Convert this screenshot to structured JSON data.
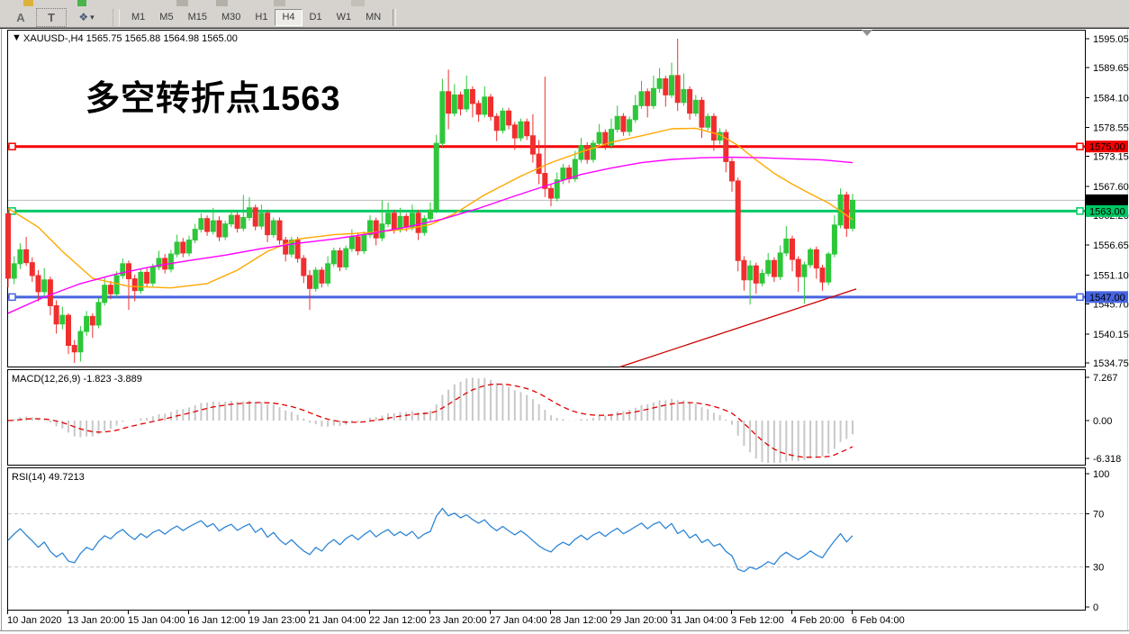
{
  "toolbar": {
    "tool_buttons": [
      {
        "name": "arrow-tool",
        "label": "A"
      },
      {
        "name": "text-tool",
        "label": "T",
        "active": true
      }
    ],
    "arrows_glyph": "❖",
    "caret_glyph": "▾",
    "timeframes": [
      "M1",
      "M5",
      "M15",
      "M30",
      "H1",
      "H4",
      "D1",
      "W1",
      "MN"
    ],
    "active_timeframe": "H4"
  },
  "window": {
    "title_marker": "▼",
    "title": "XAUUSD-,H4  1565.75 1565.88 1564.98 1565.00",
    "macd_label": "MACD(12,26,9) -1.823 -3.889",
    "rsi_label": "RSI(14) 49.7213",
    "annotation": {
      "text": "多空转折点1563",
      "color": "#fa241e"
    }
  },
  "chart_data": {
    "type": "candlestick",
    "symbol": "XAUUSD",
    "period": "H4",
    "ohlc_last": {
      "open": 1565.75,
      "high": 1565.88,
      "low": 1564.98,
      "close": 1565.0
    },
    "price_range": [
      1534.75,
      1595.05
    ],
    "price_ticks": [
      "1595.05",
      "1589.65",
      "1584.10",
      "1578.55",
      "1573.15",
      "1567.60",
      "1562.20",
      "1556.65",
      "1551.10",
      "1545.70",
      "1540.15",
      "1534.75"
    ],
    "time_ticks": [
      "10 Jan 2020",
      "13 Jan 20:00",
      "15 Jan 04:00",
      "16 Jan 12:00",
      "19 Jan 23:00",
      "21 Jan 04:00",
      "22 Jan 12:00",
      "23 Jan 20:00",
      "27 Jan 04:00",
      "28 Jan 12:00",
      "29 Jan 20:00",
      "31 Jan 04:00",
      "3 Feb 12:00",
      "4 Feb 20:00",
      "6 Feb 04:00"
    ],
    "macd_ticks": [
      "7.267",
      "0.00",
      "-6.318"
    ],
    "rsi_ticks": [
      "100",
      "70",
      "30",
      "0"
    ],
    "bull_color": "#2dc73a",
    "bear_color": "#f02e2e",
    "candles": [
      [
        1562.5,
        1563.2,
        1548.8,
        1550.5
      ],
      [
        1550.5,
        1554.6,
        1549.4,
        1553.2
      ],
      [
        1553.2,
        1557,
        1552.2,
        1555.8
      ],
      [
        1555.8,
        1558.2,
        1552.8,
        1553.4
      ],
      [
        1553.4,
        1554.4,
        1549.8,
        1551
      ],
      [
        1551,
        1552,
        1546.2,
        1548
      ],
      [
        1548,
        1552.4,
        1547.2,
        1550.2
      ],
      [
        1550.2,
        1550.8,
        1543.6,
        1545.4
      ],
      [
        1545.4,
        1546.4,
        1540.2,
        1542
      ],
      [
        1542,
        1545.2,
        1541,
        1543.6
      ],
      [
        1543.6,
        1544,
        1536.4,
        1538
      ],
      [
        1538,
        1539,
        1534.75,
        1536.8
      ],
      [
        1536.8,
        1541.6,
        1535,
        1540.6
      ],
      [
        1540.6,
        1544.4,
        1539.8,
        1543.4
      ],
      [
        1543.4,
        1544,
        1539.4,
        1541.8
      ],
      [
        1541.8,
        1546.8,
        1541.2,
        1546
      ],
      [
        1546,
        1550.6,
        1545.4,
        1549.2
      ],
      [
        1549.2,
        1550,
        1546.6,
        1547.6
      ],
      [
        1547.6,
        1551.8,
        1547,
        1551
      ],
      [
        1551,
        1554.2,
        1550.4,
        1553.2
      ],
      [
        1553.2,
        1553.8,
        1544.6,
        1550.4
      ],
      [
        1550.4,
        1551.2,
        1546.2,
        1548.2
      ],
      [
        1548.2,
        1552.2,
        1547.6,
        1551.6
      ],
      [
        1551.6,
        1552.4,
        1548.8,
        1549.6
      ],
      [
        1549.6,
        1553.2,
        1549,
        1552.6
      ],
      [
        1552.6,
        1555.6,
        1552,
        1554.2
      ],
      [
        1554.2,
        1555,
        1551.4,
        1552.2
      ],
      [
        1552.2,
        1555.8,
        1551.6,
        1555
      ],
      [
        1555,
        1558.6,
        1554.4,
        1557.2
      ],
      [
        1557.2,
        1558,
        1554.4,
        1555.2
      ],
      [
        1555.2,
        1558.4,
        1554.6,
        1557.6
      ],
      [
        1557.6,
        1560.6,
        1557,
        1559.6
      ],
      [
        1559.6,
        1562.6,
        1559,
        1561.6
      ],
      [
        1561.6,
        1562.2,
        1558.4,
        1559.2
      ],
      [
        1559.2,
        1563.6,
        1558.6,
        1561.2
      ],
      [
        1561.2,
        1562,
        1557.4,
        1558.2
      ],
      [
        1558.2,
        1561.2,
        1557.6,
        1560.6
      ],
      [
        1560.6,
        1563.2,
        1560,
        1562.2
      ],
      [
        1562.2,
        1562.8,
        1559,
        1559.8
      ],
      [
        1559.8,
        1566,
        1559.2,
        1561.8
      ],
      [
        1561.8,
        1565.6,
        1561.2,
        1563.6
      ],
      [
        1563.6,
        1564.2,
        1559.4,
        1560.2
      ],
      [
        1560.2,
        1564.2,
        1559.6,
        1562.6
      ],
      [
        1562.6,
        1563.2,
        1557.2,
        1558.6
      ],
      [
        1558.6,
        1561.8,
        1558,
        1561.2
      ],
      [
        1561.2,
        1561.8,
        1556.8,
        1557.6
      ],
      [
        1557.6,
        1558.2,
        1553.6,
        1555
      ],
      [
        1555,
        1558.2,
        1554.4,
        1557.6
      ],
      [
        1557.6,
        1558.2,
        1553.4,
        1554.2
      ],
      [
        1554.2,
        1554.8,
        1549.6,
        1551
      ],
      [
        1551,
        1552,
        1544.6,
        1548.6
      ],
      [
        1548.6,
        1552.6,
        1548,
        1552
      ],
      [
        1552,
        1552.6,
        1548.8,
        1549.6
      ],
      [
        1549.6,
        1554.6,
        1549,
        1553.2
      ],
      [
        1553.2,
        1556.2,
        1552.6,
        1555.6
      ],
      [
        1555.6,
        1556.2,
        1551.8,
        1552.6
      ],
      [
        1552.6,
        1556.6,
        1552,
        1556
      ],
      [
        1556,
        1559.6,
        1555.4,
        1558.2
      ],
      [
        1558.2,
        1558.8,
        1554.8,
        1555.6
      ],
      [
        1555.6,
        1559.2,
        1555,
        1558.6
      ],
      [
        1558.6,
        1562.2,
        1558,
        1561.2
      ],
      [
        1561.2,
        1561.8,
        1556.6,
        1558
      ],
      [
        1558,
        1565,
        1557.4,
        1560.6
      ],
      [
        1560.6,
        1564.6,
        1560,
        1562.6
      ],
      [
        1562.6,
        1563.2,
        1558.8,
        1559.6
      ],
      [
        1559.6,
        1563.6,
        1559,
        1562
      ],
      [
        1562,
        1562.6,
        1559.2,
        1560
      ],
      [
        1560,
        1564.2,
        1559.4,
        1562.6
      ],
      [
        1562.6,
        1563.2,
        1557.6,
        1559
      ],
      [
        1559,
        1562.2,
        1558.4,
        1561.6
      ],
      [
        1561.6,
        1564.6,
        1561,
        1563.2
      ],
      [
        1563.2,
        1577.2,
        1562.6,
        1575.6
      ],
      [
        1575.6,
        1587.6,
        1575,
        1585.2
      ],
      [
        1585.2,
        1589.3,
        1578.2,
        1581.2
      ],
      [
        1581.2,
        1586.6,
        1580.6,
        1584.6
      ],
      [
        1584.6,
        1585.2,
        1580.8,
        1582
      ],
      [
        1582,
        1588.2,
        1581.4,
        1585.6
      ],
      [
        1585.6,
        1586.2,
        1580.4,
        1583
      ],
      [
        1583,
        1583.6,
        1579.6,
        1581
      ],
      [
        1581,
        1586.2,
        1580.4,
        1584.2
      ],
      [
        1584.2,
        1584.8,
        1579.8,
        1580.6
      ],
      [
        1580.6,
        1581.2,
        1576,
        1578
      ],
      [
        1578,
        1582.2,
        1577.4,
        1581.6
      ],
      [
        1581.6,
        1582.2,
        1578.2,
        1579
      ],
      [
        1579,
        1579.6,
        1574.4,
        1576.6
      ],
      [
        1576.6,
        1580.2,
        1576,
        1579.6
      ],
      [
        1579.6,
        1580.2,
        1576.2,
        1577
      ],
      [
        1577,
        1581,
        1572,
        1573.6
      ],
      [
        1573.6,
        1576.2,
        1568,
        1570
      ],
      [
        1570,
        1588,
        1565.6,
        1567.2
      ],
      [
        1567.2,
        1568,
        1563.9,
        1565.4
      ],
      [
        1565.4,
        1570.2,
        1564.8,
        1568.8
      ],
      [
        1568.8,
        1571.8,
        1568,
        1571
      ],
      [
        1571,
        1571.6,
        1568.2,
        1569
      ],
      [
        1569,
        1574.2,
        1568.4,
        1572.6
      ],
      [
        1572.6,
        1576.6,
        1572,
        1575.2
      ],
      [
        1575.2,
        1575.8,
        1571.8,
        1572.6
      ],
      [
        1572.6,
        1576.2,
        1572,
        1575.6
      ],
      [
        1575.6,
        1579.2,
        1575,
        1577.6
      ],
      [
        1577.6,
        1578.2,
        1574.4,
        1575.2
      ],
      [
        1575.2,
        1580.2,
        1574.6,
        1578.2
      ],
      [
        1578.2,
        1582.6,
        1577.6,
        1580.6
      ],
      [
        1580.6,
        1581.2,
        1577,
        1577.8
      ],
      [
        1577.8,
        1580.6,
        1577,
        1580
      ],
      [
        1580,
        1584.6,
        1579.4,
        1582.6
      ],
      [
        1582.6,
        1587.2,
        1582,
        1585.2
      ],
      [
        1585.2,
        1585.8,
        1580.4,
        1582.6
      ],
      [
        1582.6,
        1588.2,
        1582,
        1585.8
      ],
      [
        1585.8,
        1589.6,
        1585,
        1587.6
      ],
      [
        1587.6,
        1588.2,
        1582.4,
        1584.6
      ],
      [
        1584.6,
        1590.6,
        1584,
        1588.2
      ],
      [
        1588.2,
        1595.05,
        1581.6,
        1583.2
      ],
      [
        1583.2,
        1588.6,
        1582.6,
        1585.6
      ],
      [
        1585.6,
        1586.2,
        1580,
        1581.2
      ],
      [
        1581.2,
        1584.6,
        1580.6,
        1583.6
      ],
      [
        1583.6,
        1584.2,
        1576.6,
        1578.6
      ],
      [
        1578.6,
        1581.2,
        1578,
        1580.6
      ],
      [
        1580.6,
        1581.2,
        1574.2,
        1576.2
      ],
      [
        1576.2,
        1578.4,
        1575.4,
        1577.6
      ],
      [
        1577.6,
        1578.2,
        1570.2,
        1572.2
      ],
      [
        1572.2,
        1572.8,
        1566.6,
        1568.6
      ],
      [
        1568.6,
        1569.2,
        1551.8,
        1553.8
      ],
      [
        1553.8,
        1554.6,
        1548.2,
        1550.2
      ],
      [
        1550.2,
        1553.8,
        1545.6,
        1552.8
      ],
      [
        1552.8,
        1553.4,
        1547.6,
        1549.6
      ],
      [
        1549.6,
        1552.2,
        1549,
        1551.4
      ],
      [
        1551.4,
        1555.2,
        1550.8,
        1553.8
      ],
      [
        1553.8,
        1554.4,
        1549.8,
        1550.8
      ],
      [
        1550.8,
        1556.6,
        1550.2,
        1555.2
      ],
      [
        1555.2,
        1560.2,
        1554.6,
        1557.8
      ],
      [
        1557.8,
        1558.4,
        1551.8,
        1554
      ],
      [
        1554,
        1554.6,
        1548,
        1550.8
      ],
      [
        1550.8,
        1553.6,
        1545.8,
        1553
      ],
      [
        1553,
        1556.2,
        1552.4,
        1555.8
      ],
      [
        1555.8,
        1556.4,
        1550.4,
        1552.4
      ],
      [
        1552.4,
        1553,
        1548.2,
        1549.8
      ],
      [
        1549.8,
        1555.4,
        1549.2,
        1555
      ],
      [
        1555,
        1562.2,
        1554.4,
        1560.4
      ],
      [
        1560.4,
        1567.2,
        1559.8,
        1566
      ],
      [
        1566,
        1566.6,
        1558.2,
        1559.8
      ],
      [
        1559.8,
        1566.2,
        1559.2,
        1565
      ]
    ],
    "hlines": [
      {
        "price": 1575.0,
        "color": "#f50000",
        "badge": "1575.00"
      },
      {
        "price": 1563.0,
        "color": "#00c864",
        "badge": "1563.00"
      },
      {
        "price": 1547.0,
        "color": "#4664e0",
        "badge": "1547.00"
      }
    ],
    "current_price": {
      "price": 1565.0,
      "badge": "1565.00",
      "line_color": "#bbbbbb",
      "badge_bg": "#000000"
    },
    "ma_fast": {
      "color": "#ffa800",
      "points": [
        [
          0,
          1563.5
        ],
        [
          5,
          1560
        ],
        [
          9,
          1555.5
        ],
        [
          14,
          1550.5
        ],
        [
          20,
          1549
        ],
        [
          27,
          1548.7
        ],
        [
          33,
          1549.5
        ],
        [
          38,
          1552
        ],
        [
          43,
          1555.5
        ],
        [
          48,
          1557.8
        ],
        [
          54,
          1558.6
        ],
        [
          60,
          1559
        ],
        [
          66,
          1559.6
        ],
        [
          70,
          1560.5
        ],
        [
          74,
          1562.5
        ],
        [
          79,
          1566
        ],
        [
          85,
          1569.5
        ],
        [
          90,
          1572
        ],
        [
          95,
          1574
        ],
        [
          100,
          1575.8
        ],
        [
          105,
          1577
        ],
        [
          110,
          1578.3
        ],
        [
          114,
          1578.4
        ],
        [
          118,
          1577.2
        ],
        [
          121,
          1575.2
        ],
        [
          124,
          1572.5
        ],
        [
          127,
          1570
        ],
        [
          130,
          1568
        ],
        [
          133,
          1566.2
        ],
        [
          136,
          1564.5
        ],
        [
          138,
          1563
        ],
        [
          140,
          1561.4
        ]
      ]
    },
    "ma_slow": {
      "color": "#ff00ff",
      "points": [
        [
          0,
          1544
        ],
        [
          6,
          1547
        ],
        [
          12,
          1549.5
        ],
        [
          18,
          1551.3
        ],
        [
          24,
          1552.7
        ],
        [
          30,
          1553.8
        ],
        [
          36,
          1554.8
        ],
        [
          42,
          1556
        ],
        [
          48,
          1557
        ],
        [
          54,
          1557.8
        ],
        [
          60,
          1558.8
        ],
        [
          66,
          1560
        ],
        [
          72,
          1561.5
        ],
        [
          78,
          1563.5
        ],
        [
          84,
          1565.8
        ],
        [
          90,
          1568
        ],
        [
          95,
          1569.8
        ],
        [
          100,
          1571
        ],
        [
          105,
          1572
        ],
        [
          110,
          1572.6
        ],
        [
          115,
          1572.9
        ],
        [
          120,
          1573
        ],
        [
          125,
          1572.9
        ],
        [
          130,
          1572.7
        ],
        [
          135,
          1572.5
        ],
        [
          140,
          1572
        ]
      ]
    },
    "trendline": {
      "color": "#cc0000",
      "points": [
        [
          101.4,
          1534.0
        ],
        [
          140.6,
          1548.5
        ]
      ]
    },
    "macd": {
      "params": [
        12,
        26,
        9
      ],
      "histogram_color": "#c8c8c8",
      "signal_color": "#e00000",
      "last_values": [
        -1.823,
        -3.889
      ]
    },
    "rsi": {
      "period": 14,
      "color": "#2e86d6",
      "levels": [
        70,
        30
      ],
      "level_color": "#c4c4c4",
      "last_value": 49.7213
    }
  }
}
